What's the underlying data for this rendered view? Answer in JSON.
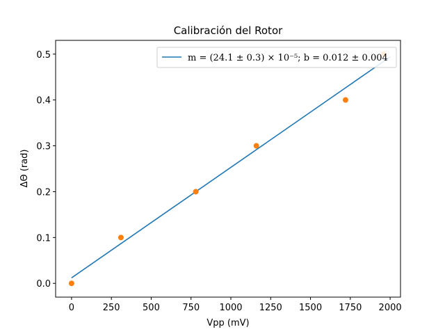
{
  "chart_data": {
    "type": "scatter",
    "title": "Calibración del Rotor",
    "xlabel": "Vpp (mV)",
    "ylabel": "ΔΘ (rad)",
    "xlim": [
      -100,
      2065
    ],
    "ylim": [
      -0.03,
      0.53
    ],
    "xticks": [
      0,
      250,
      500,
      750,
      1000,
      1250,
      1500,
      1750,
      2000
    ],
    "yticks": [
      0.0,
      0.1,
      0.2,
      0.3,
      0.4,
      0.5
    ],
    "xtick_labels": [
      "0",
      "250",
      "500",
      "750",
      "1000",
      "1250",
      "1500",
      "1750",
      "2000"
    ],
    "ytick_labels": [
      "0.0",
      "0.1",
      "0.2",
      "0.3",
      "0.4",
      "0.5"
    ],
    "grid": false,
    "legend_position": "top-right",
    "series": [
      {
        "kind": "line",
        "name": "m = (24.1 ± 0.3) × 10⁻⁵; b = 0.012 ± 0.004",
        "color": "#1f77b4",
        "slope": 0.000241,
        "intercept": 0.012,
        "x": [
          0,
          2000
        ],
        "y": [
          0.012,
          0.494
        ]
      },
      {
        "kind": "scatter",
        "color": "#ff7f0e",
        "x": [
          0,
          310,
          780,
          1160,
          1720,
          1960
        ],
        "y": [
          0.0,
          0.1,
          0.2,
          0.3,
          0.4,
          0.5
        ]
      }
    ]
  }
}
